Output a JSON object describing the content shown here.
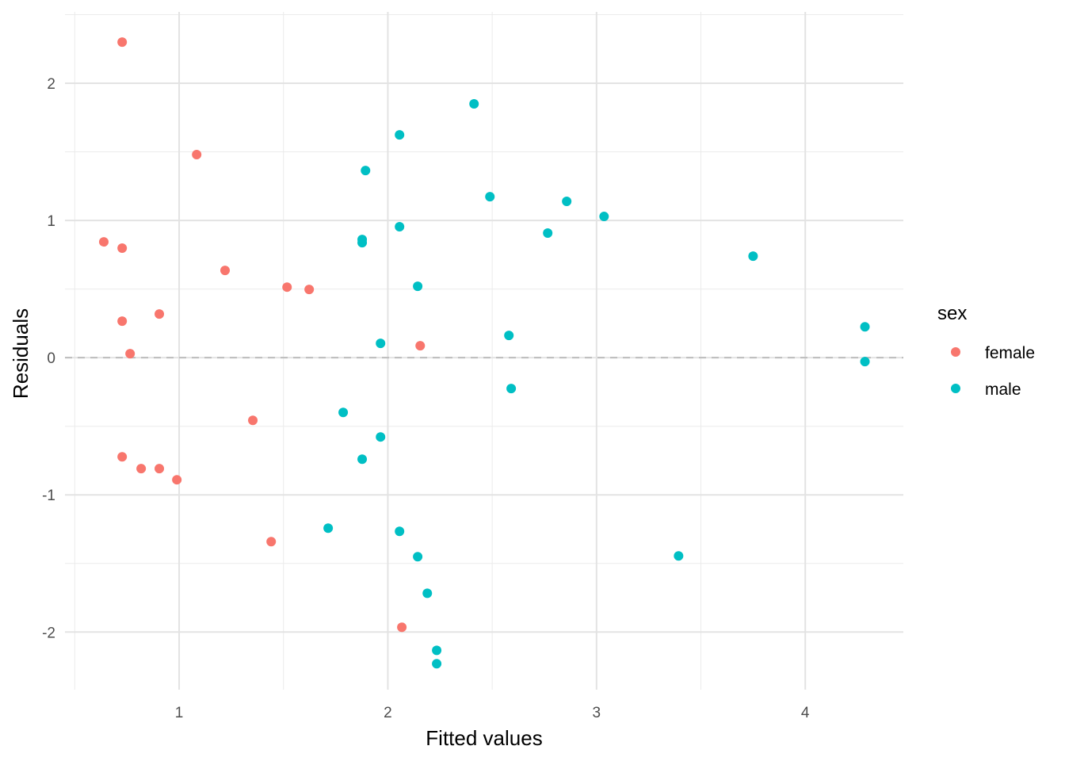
{
  "chart_data": {
    "type": "scatter",
    "title": "",
    "xlabel": "Fitted values",
    "ylabel": "Residuals",
    "xlim": [
      0.453,
      4.47
    ],
    "ylim": [
      -2.42,
      2.52
    ],
    "xticks": [
      1,
      2,
      3,
      4
    ],
    "yticks": [
      -2,
      -1,
      0,
      1,
      2
    ],
    "xtick_labels": [
      "1",
      "2",
      "3",
      "4"
    ],
    "ytick_labels": [
      "-2",
      "-1",
      "0",
      "1",
      "2"
    ],
    "grid": true,
    "reference_line": {
      "y": 0,
      "style": "dashed"
    },
    "legend": {
      "title": "sex",
      "placement": "right"
    },
    "series": [
      {
        "name": "female",
        "color": "#F8766D",
        "points": [
          [
            0.727,
            2.3
          ],
          [
            1.084,
            1.48
          ],
          [
            0.639,
            0.844
          ],
          [
            0.727,
            0.798
          ],
          [
            1.22,
            0.636
          ],
          [
            1.517,
            0.514
          ],
          [
            1.623,
            0.497
          ],
          [
            0.905,
            0.318
          ],
          [
            0.727,
            0.266
          ],
          [
            0.765,
            0.029
          ],
          [
            2.155,
            0.087
          ],
          [
            1.353,
            -0.457
          ],
          [
            0.727,
            -0.723
          ],
          [
            0.818,
            -0.809
          ],
          [
            0.905,
            -0.809
          ],
          [
            0.989,
            -0.89
          ],
          [
            1.441,
            -1.341
          ],
          [
            2.067,
            -1.965
          ]
        ]
      },
      {
        "name": "male",
        "color": "#00BFC4",
        "points": [
          [
            2.413,
            1.85
          ],
          [
            2.056,
            1.624
          ],
          [
            1.893,
            1.364
          ],
          [
            2.489,
            1.173
          ],
          [
            2.857,
            1.139
          ],
          [
            3.036,
            1.029
          ],
          [
            2.056,
            0.954
          ],
          [
            2.766,
            0.908
          ],
          [
            1.877,
            0.861
          ],
          [
            1.877,
            0.838
          ],
          [
            3.75,
            0.74
          ],
          [
            2.143,
            0.52
          ],
          [
            4.286,
            0.225
          ],
          [
            2.58,
            0.162
          ],
          [
            1.965,
            0.104
          ],
          [
            4.286,
            -0.029
          ],
          [
            2.591,
            -0.225
          ],
          [
            1.786,
            -0.399
          ],
          [
            1.965,
            -0.578
          ],
          [
            1.877,
            -0.74
          ],
          [
            1.714,
            -1.243
          ],
          [
            2.056,
            -1.266
          ],
          [
            2.143,
            -1.451
          ],
          [
            3.393,
            -1.445
          ],
          [
            2.189,
            -1.717
          ],
          [
            2.234,
            -2.133
          ],
          [
            2.234,
            -2.231
          ]
        ]
      }
    ]
  }
}
